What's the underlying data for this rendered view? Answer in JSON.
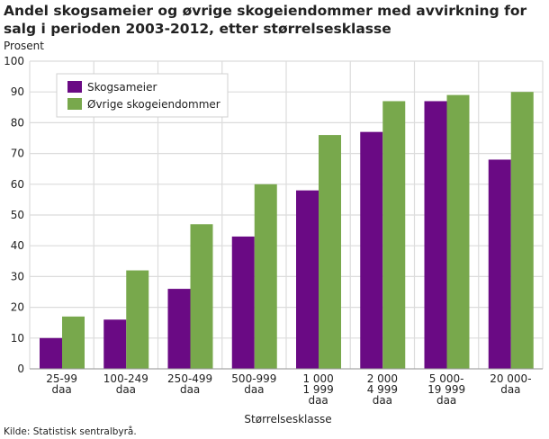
{
  "chart_data": {
    "type": "bar",
    "title": "Andel skogsameier og øvrige skogeiendommer med avvirkning for salg i perioden 2003-2012, etter størrelsesklasse",
    "ylabel": "Prosent",
    "xlabel": "Størrelsesklasse",
    "ylim": [
      0,
      100
    ],
    "yticks": [
      0,
      10,
      20,
      30,
      40,
      50,
      60,
      70,
      80,
      90,
      100
    ],
    "grid": true,
    "legend_position": "top-left",
    "categories": [
      [
        "25-99",
        "daa"
      ],
      [
        "100-249",
        "daa"
      ],
      [
        "250-499",
        "daa"
      ],
      [
        "500-999",
        "daa"
      ],
      [
        "1 000",
        "1 999",
        "daa"
      ],
      [
        "2 000",
        "4 999",
        "daa"
      ],
      [
        "5 000-",
        "19 999",
        "daa"
      ],
      [
        "20 000-",
        "daa"
      ]
    ],
    "series": [
      {
        "name": "Skogsameier",
        "color": "#6a0a84",
        "values": [
          10,
          16,
          26,
          43,
          58,
          77,
          87,
          68
        ]
      },
      {
        "name": "Øvrige skogeiendommer",
        "color": "#78a84c",
        "values": [
          17,
          32,
          47,
          60,
          76,
          87,
          89,
          90
        ]
      }
    ],
    "source": "Kilde: Statistisk sentralbyrå."
  }
}
